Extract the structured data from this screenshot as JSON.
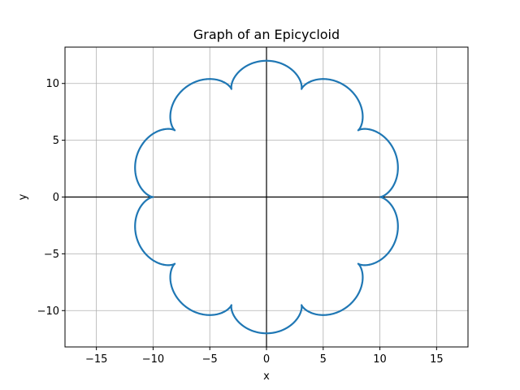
{
  "chart_data": {
    "type": "line",
    "title": "Graph of an Epicycloid",
    "xlabel": "x",
    "ylabel": "y",
    "xlim": [
      -17.77,
      17.77
    ],
    "ylim": [
      -13.2,
      13.2
    ],
    "aspect": "equal",
    "grid": true,
    "legend": "none",
    "x_ticks": [
      -15,
      -10,
      -5,
      0,
      5,
      10,
      15
    ],
    "y_ticks": [
      -10,
      -5,
      0,
      5,
      10
    ],
    "x_tick_labels": [
      "−15",
      "−10",
      "−5",
      "0",
      "5",
      "10",
      "15"
    ],
    "y_tick_labels": [
      "−10",
      "−5",
      "0",
      "5",
      "10"
    ],
    "reference_lines": [
      {
        "orientation": "horizontal",
        "value": 0,
        "color": "#000000"
      },
      {
        "orientation": "vertical",
        "value": 0,
        "color": "#000000"
      }
    ],
    "series": [
      {
        "curve": "epicycloid",
        "fixed_circle_radius": 10,
        "rolling_circle_radius": 1,
        "cusps": 10,
        "t_range": [
          0,
          6.2832
        ],
        "color": "#1f77b4"
      }
    ]
  }
}
